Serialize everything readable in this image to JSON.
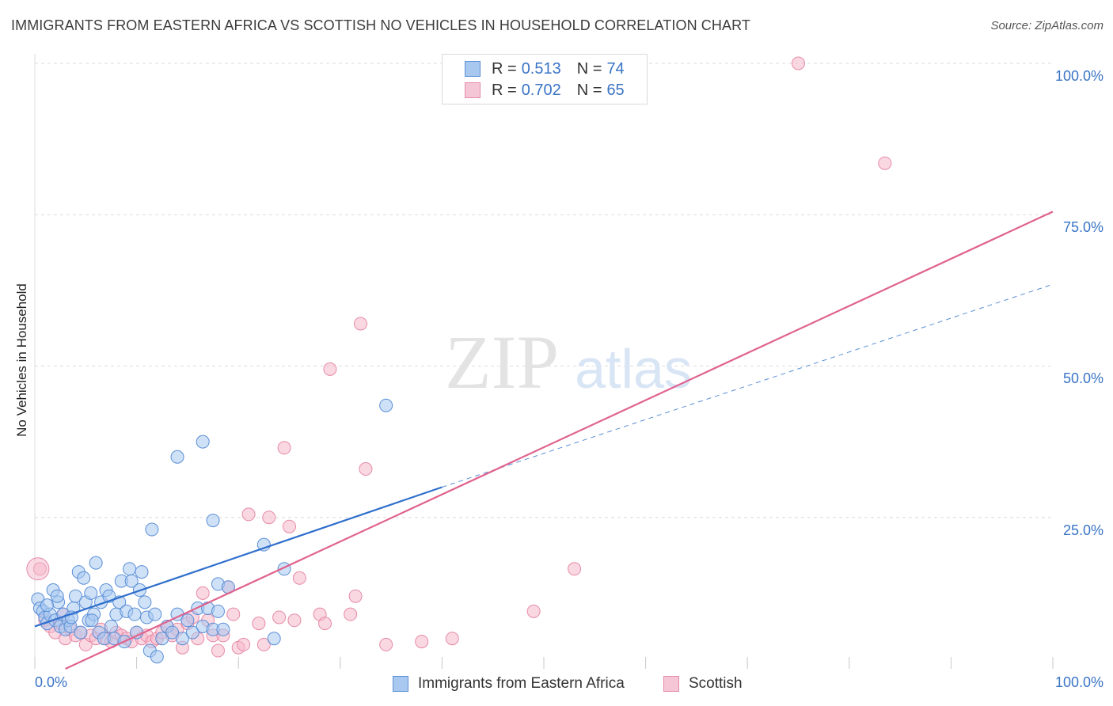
{
  "title": "IMMIGRANTS FROM EASTERN AFRICA VS SCOTTISH NO VEHICLES IN HOUSEHOLD CORRELATION CHART",
  "source": "Source: ZipAtlas.com",
  "watermark": {
    "zip": "ZIP",
    "atlas": "atlas"
  },
  "colors": {
    "blue_fill": "#a8c8f0",
    "blue_stroke": "#5b8fd6",
    "blue_line": "#2f6fcc",
    "pink_fill": "#f5b8cb",
    "pink_stroke": "#e68aa8",
    "pink_line": "#e0628e",
    "tick_text": "#3a74c6",
    "grid": "#dcdcdc"
  },
  "legend": {
    "rows": [
      {
        "r_label": "R =",
        "r_value": "0.513",
        "n_label": "N =",
        "n_value": "74"
      },
      {
        "r_label": "R =",
        "r_value": "0.702",
        "n_label": "N =",
        "n_value": "65"
      }
    ]
  },
  "chart_data": {
    "type": "scatter",
    "title": "IMMIGRANTS FROM EASTERN AFRICA VS SCOTTISH NO VEHICLES IN HOUSEHOLD CORRELATION CHART",
    "xlabel": "",
    "ylabel": "No Vehicles in Household",
    "xlim": [
      0,
      100
    ],
    "ylim": [
      0,
      100
    ],
    "x_tick_labels": [
      "0.0%",
      "100.0%"
    ],
    "y_tick_labels": [
      "25.0%",
      "50.0%",
      "75.0%",
      "100.0%"
    ],
    "y_ticks": [
      25,
      50,
      75,
      100
    ],
    "grid": true,
    "legend_position": "top-center",
    "series": [
      {
        "name": "Immigrants from Eastern Africa",
        "color": "blue",
        "r": 0.513,
        "n": 74,
        "trend": {
          "x0": 0,
          "y0": 7,
          "x1": 40,
          "y1": 30,
          "dashed_to_x": 100,
          "dashed_to_y": 63.5
        },
        "points": [
          [
            0.3,
            11.5
          ],
          [
            0.5,
            10
          ],
          [
            0.8,
            9.5
          ],
          [
            1,
            8.5
          ],
          [
            1.2,
            7.5
          ],
          [
            1.5,
            9
          ],
          [
            1.8,
            13
          ],
          [
            2,
            8
          ],
          [
            2.3,
            11
          ],
          [
            2.5,
            7
          ],
          [
            2.8,
            9
          ],
          [
            3,
            6.5
          ],
          [
            3.3,
            8
          ],
          [
            3.5,
            7
          ],
          [
            3.8,
            10
          ],
          [
            4,
            12
          ],
          [
            4.3,
            16
          ],
          [
            4.5,
            6
          ],
          [
            4.8,
            15
          ],
          [
            5,
            11
          ],
          [
            5.3,
            8
          ],
          [
            5.5,
            12.5
          ],
          [
            5.8,
            9
          ],
          [
            6,
            17.5
          ],
          [
            6.3,
            6
          ],
          [
            6.5,
            11
          ],
          [
            6.8,
            5
          ],
          [
            7,
            13
          ],
          [
            7.3,
            12
          ],
          [
            7.5,
            7
          ],
          [
            7.8,
            5
          ],
          [
            8,
            9
          ],
          [
            8.3,
            11
          ],
          [
            8.5,
            14.5
          ],
          [
            8.8,
            4.5
          ],
          [
            9,
            9.5
          ],
          [
            9.3,
            16.5
          ],
          [
            9.5,
            14.5
          ],
          [
            9.8,
            9
          ],
          [
            10,
            6
          ],
          [
            10.3,
            13
          ],
          [
            10.5,
            16
          ],
          [
            10.8,
            11
          ],
          [
            11,
            8.5
          ],
          [
            11.3,
            3
          ],
          [
            11.5,
            23
          ],
          [
            11.8,
            9
          ],
          [
            12,
            2
          ],
          [
            12.5,
            5
          ],
          [
            13,
            7
          ],
          [
            13.5,
            6
          ],
          [
            14,
            9
          ],
          [
            14.5,
            5
          ],
          [
            15,
            8
          ],
          [
            15.5,
            6
          ],
          [
            16,
            10
          ],
          [
            16.5,
            7
          ],
          [
            17,
            10
          ],
          [
            17.5,
            6.5
          ],
          [
            18,
            9.5
          ],
          [
            18.5,
            6.5
          ],
          [
            14,
            35
          ],
          [
            16.5,
            37.5
          ],
          [
            17.5,
            24.5
          ],
          [
            18,
            14
          ],
          [
            19,
            13.5
          ],
          [
            22.5,
            20.5
          ],
          [
            23.5,
            5
          ],
          [
            24.5,
            16.5
          ],
          [
            34.5,
            43.5
          ],
          [
            1.2,
            10.5
          ],
          [
            2.2,
            12
          ],
          [
            3.6,
            8.5
          ],
          [
            5.6,
            8
          ]
        ]
      },
      {
        "name": "Scottish",
        "color": "pink",
        "r": 0.702,
        "n": 65,
        "trend": {
          "x0": 3,
          "y0": 0,
          "x1": 100,
          "y1": 75.5
        },
        "points": [
          [
            0.5,
            16.5
          ],
          [
            1,
            8
          ],
          [
            1.5,
            7
          ],
          [
            2,
            6
          ],
          [
            2.5,
            7.5
          ],
          [
            3,
            5
          ],
          [
            3.5,
            6.5
          ],
          [
            4,
            5.5
          ],
          [
            4.5,
            6
          ],
          [
            5,
            4
          ],
          [
            5.5,
            5.5
          ],
          [
            6,
            5
          ],
          [
            6.5,
            6.5
          ],
          [
            7,
            5
          ],
          [
            7.5,
            4.5
          ],
          [
            8,
            6
          ],
          [
            8.5,
            5.5
          ],
          [
            9,
            5
          ],
          [
            9.5,
            4.5
          ],
          [
            10,
            6
          ],
          [
            10.5,
            5
          ],
          [
            11,
            5.5
          ],
          [
            11.5,
            4.5
          ],
          [
            12,
            5
          ],
          [
            12.5,
            6
          ],
          [
            13,
            7
          ],
          [
            13.5,
            5.5
          ],
          [
            14,
            6.5
          ],
          [
            14.5,
            3.5
          ],
          [
            15,
            7.5
          ],
          [
            15.5,
            8.5
          ],
          [
            16,
            5
          ],
          [
            16.5,
            12.5
          ],
          [
            17,
            8
          ],
          [
            17.5,
            5.5
          ],
          [
            18,
            3
          ],
          [
            18.5,
            5.5
          ],
          [
            19,
            13.5
          ],
          [
            19.5,
            9
          ],
          [
            20,
            3.5
          ],
          [
            20.5,
            4
          ],
          [
            21,
            25.5
          ],
          [
            22,
            7.5
          ],
          [
            22.5,
            4
          ],
          [
            23,
            25
          ],
          [
            24,
            8.5
          ],
          [
            24.5,
            36.5
          ],
          [
            25,
            23.5
          ],
          [
            25.5,
            8
          ],
          [
            26,
            15
          ],
          [
            28,
            9
          ],
          [
            28.5,
            7.5
          ],
          [
            29,
            49.5
          ],
          [
            31,
            9
          ],
          [
            31.5,
            12
          ],
          [
            32,
            57
          ],
          [
            32.5,
            33
          ],
          [
            34.5,
            4
          ],
          [
            38,
            4.5
          ],
          [
            41,
            5
          ],
          [
            49,
            9.5
          ],
          [
            53,
            16.5
          ],
          [
            75,
            100
          ],
          [
            83.5,
            83.5
          ],
          [
            2.8,
            9
          ]
        ]
      }
    ]
  },
  "bottom_legend": [
    {
      "label": "Immigrants from Eastern Africa"
    },
    {
      "label": "Scottish"
    }
  ]
}
